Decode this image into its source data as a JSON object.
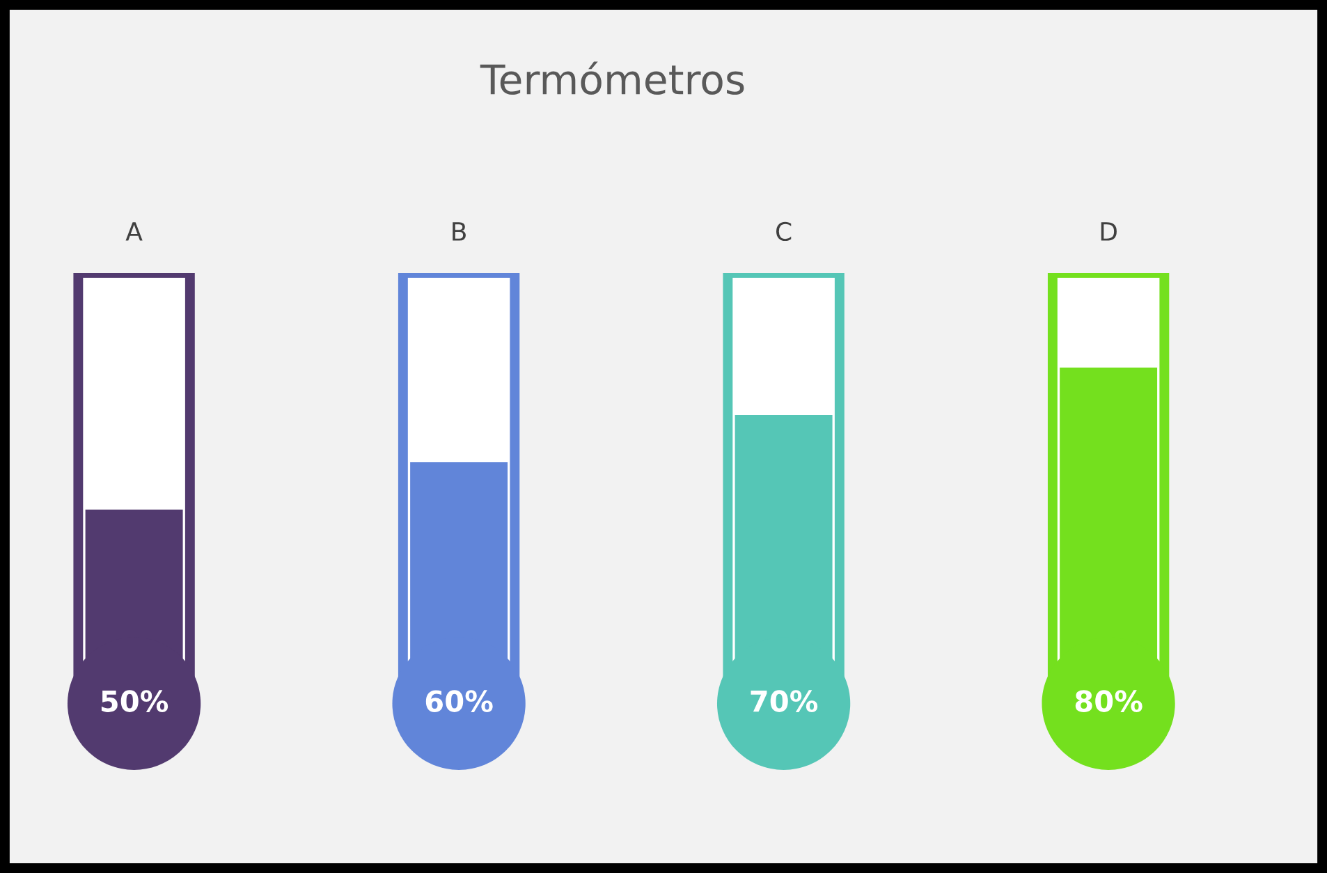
{
  "chart_data": {
    "type": "bar",
    "title": "Termómetros",
    "categories": [
      "A",
      "B",
      "C",
      "D"
    ],
    "values": [
      50,
      60,
      70,
      80
    ],
    "colors": [
      "#523a6f",
      "#6185d9",
      "#55c6b6",
      "#74e01e"
    ],
    "value_labels": [
      "50%",
      "60%",
      "70%",
      "80%"
    ],
    "ylim": [
      0,
      100
    ],
    "grid": false,
    "legend": false
  }
}
